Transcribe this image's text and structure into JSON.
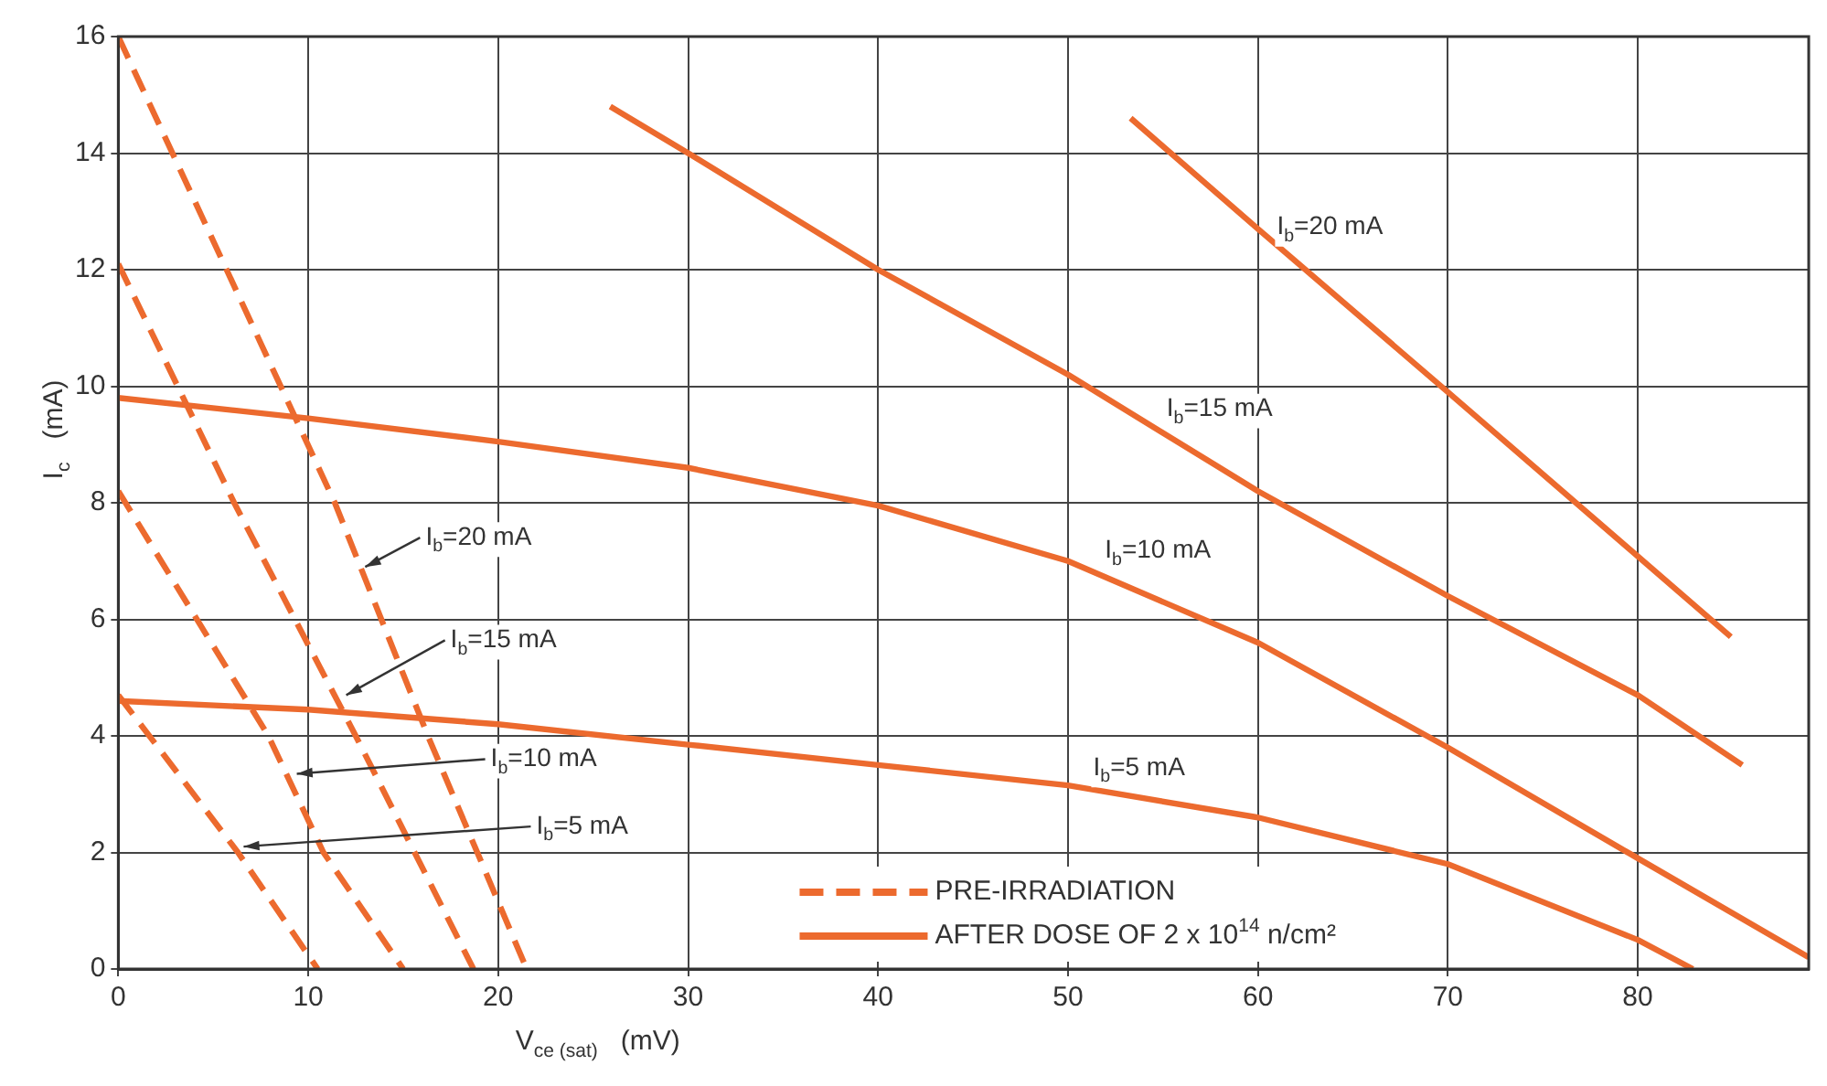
{
  "chart_data": {
    "type": "line",
    "xlabel": "V$_{ce (sat)}$   (mV)",
    "ylabel": "I$_{c}$   (mA)",
    "xlim": [
      0,
      89
    ],
    "xticks": [
      0,
      10,
      20,
      30,
      40,
      50,
      60,
      70,
      80
    ],
    "ylim": [
      0,
      16
    ],
    "yticks": [
      0,
      2,
      4,
      6,
      8,
      10,
      12,
      14,
      16
    ],
    "grid": true,
    "legend": "bottom",
    "marker": "none",
    "series": [
      {
        "name": "PRE-IRRADIATION",
        "color": "#ec6a2e",
        "line_style": "dashed",
        "x": [
          0,
          5.7,
          11.4,
          16.3,
          21.5
        ],
        "values": [
          16,
          12,
          8,
          4,
          0
        ]
      },
      {
        "color": "#ec6a2e",
        "line_style": "dashed",
        "x": [
          0,
          6.1,
          12.5,
          18.7
        ],
        "values": [
          12.1,
          8,
          4,
          0
        ]
      },
      {
        "color": "#ec6a2e",
        "line_style": "dashed",
        "x": [
          0,
          7.9,
          10.8,
          15
        ],
        "values": [
          8.2,
          4,
          2,
          0
        ]
      },
      {
        "color": "#ec6a2e",
        "line_style": "dashed",
        "x": [
          0,
          6.3,
          10.5
        ],
        "values": [
          4.7,
          2,
          0
        ]
      },
      {
        "name": "AFTER DOSE OF 2 x 10$^{14}$ n/cm²",
        "color": "#ec6a2e",
        "line_style": "solid",
        "x": [
          53.3,
          60,
          70,
          84.9
        ],
        "values": [
          14.6,
          12.7,
          9.9,
          5.7
        ]
      },
      {
        "color": "#ec6a2e",
        "line_style": "solid",
        "x": [
          25.9,
          30,
          40,
          50,
          60,
          70,
          80,
          85.5
        ],
        "values": [
          14.8,
          14,
          12,
          10.2,
          8.2,
          6.4,
          4.7,
          3.5
        ]
      },
      {
        "color": "#ec6a2e",
        "line_style": "solid",
        "x": [
          0,
          10,
          20,
          30,
          40,
          50,
          60,
          70,
          80,
          89
        ],
        "values": [
          9.8,
          9.45,
          9.05,
          8.6,
          7.95,
          7,
          5.6,
          3.8,
          1.9,
          0.2
        ]
      },
      {
        "color": "#ec6a2e",
        "line_style": "solid",
        "x": [
          0,
          10,
          20,
          30,
          40,
          50,
          60,
          70,
          80,
          82.9
        ],
        "values": [
          4.6,
          4.45,
          4.2,
          3.85,
          3.5,
          3.15,
          2.6,
          1.8,
          0.5,
          0
        ]
      }
    ],
    "annotations": [
      {
        "text": "I$_{b}$=20 mA",
        "x": 13,
        "y": 6.9
      },
      {
        "text": "I$_{b}$=15 mA",
        "x": 12,
        "y": 4.7
      },
      {
        "text": "I$_{b}$=10 mA",
        "x": 9.4,
        "y": 3.35
      },
      {
        "text": "I$_{b}$=5 mA",
        "x": 6.6,
        "y": 2.1
      },
      {
        "text": "I$_{b}$=20 mA",
        "x": 61,
        "y": 12.6
      },
      {
        "text": "I$_{b}$=15 mA",
        "x": 55,
        "y": 9.2
      },
      {
        "text": "I$_{b}$=10 mA",
        "x": 53,
        "y": 6.58
      },
      {
        "text": "I$_{b}$=5 mA",
        "x": 52,
        "y": 3.04
      }
    ]
  }
}
